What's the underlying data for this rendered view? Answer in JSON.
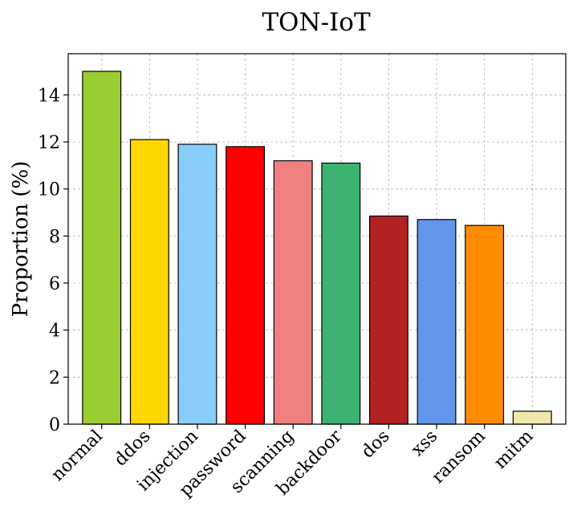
{
  "chart_data": {
    "type": "bar",
    "title": "TON-IoT",
    "xlabel": "",
    "ylabel": "Proportion (%)",
    "categories": [
      "normal",
      "ddos",
      "injection",
      "password",
      "scanning",
      "backdoor",
      "dos",
      "xss",
      "ransom",
      "mitm"
    ],
    "values": [
      15.0,
      12.1,
      11.9,
      11.8,
      11.2,
      11.1,
      8.85,
      8.7,
      8.45,
      0.55
    ],
    "colors": [
      "#9acd32",
      "#ffd700",
      "#87cefa",
      "#ff0000",
      "#f08080",
      "#3cb371",
      "#b22222",
      "#6495ed",
      "#ff8c00",
      "#eee8aa"
    ],
    "ylim": [
      0,
      15.75
    ],
    "yticks": [
      0,
      2,
      4,
      6,
      8,
      10,
      12,
      14
    ],
    "grid": true,
    "legend": "none"
  }
}
